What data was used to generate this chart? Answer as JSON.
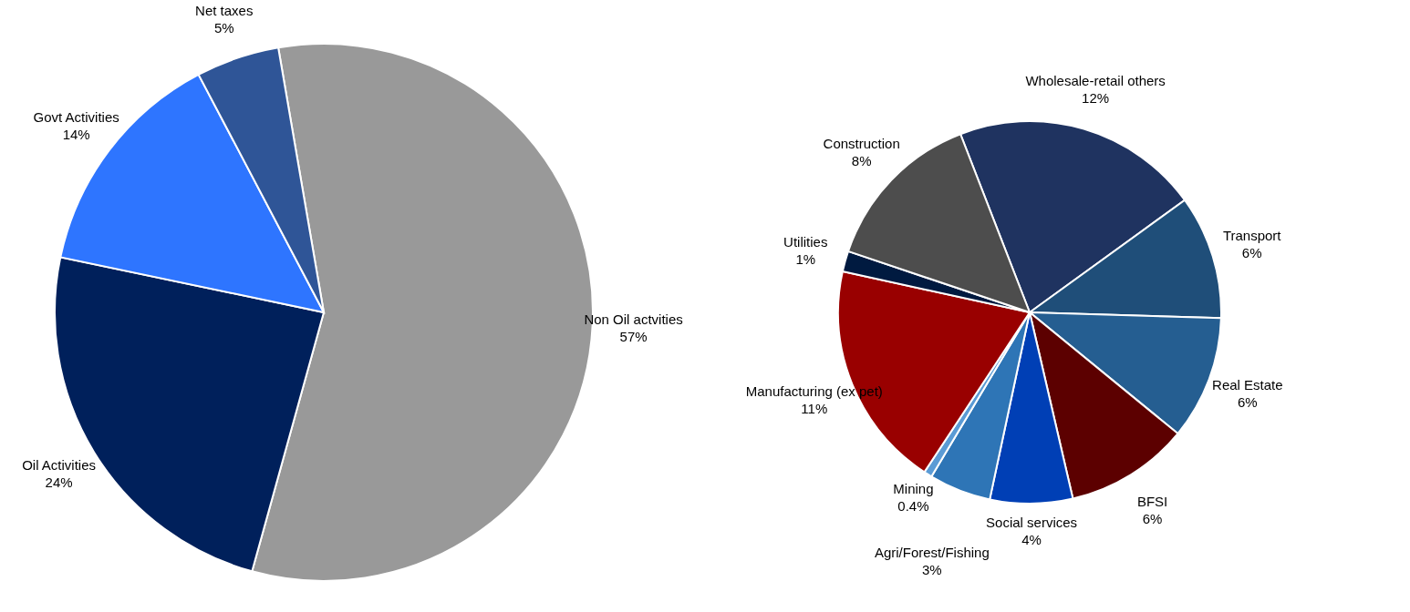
{
  "chart_data": [
    {
      "type": "pie",
      "categories": [
        "Non Oil actvities",
        "Oil Activities",
        "Govt  Activities",
        "Net taxes"
      ],
      "values": [
        57,
        24,
        14,
        5
      ],
      "value_labels": [
        "57%",
        "24%",
        "14%",
        "5%"
      ],
      "colors": [
        "#999999",
        "#00205b",
        "#2e75ff",
        "#2f5597"
      ],
      "legend": false
    },
    {
      "type": "pie",
      "categories": [
        "Wholesale-retail  others",
        "Transport",
        "Real Estate",
        "BFSI",
        "Social services",
        "Agri/Forest/Fishing",
        "Mining",
        "Manufacturing  (ex pet)",
        "Utilities",
        "Construction"
      ],
      "values": [
        12,
        6,
        6,
        6,
        4,
        3,
        0.4,
        11,
        1,
        8
      ],
      "value_labels": [
        "12%",
        "6%",
        "6%",
        "6%",
        "4%",
        "3%",
        "0.4%",
        "11%",
        "1%",
        "8%"
      ],
      "colors": [
        "#1f3360",
        "#1f4e79",
        "#255e91",
        "#5c0000",
        "#003fb5",
        "#2e75b6",
        "#5b9bd5",
        "#990000",
        "#001a40",
        "#4d4d4d"
      ],
      "legend": false
    }
  ]
}
